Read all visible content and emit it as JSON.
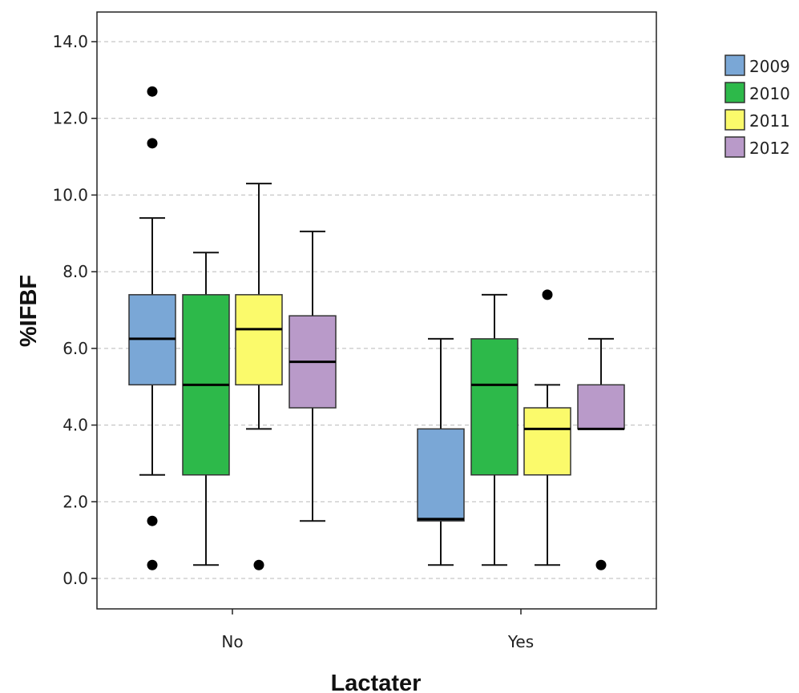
{
  "chart_data": {
    "type": "boxplot",
    "xlabel": "Lactater",
    "ylabel": "%IFBF",
    "ylim": [
      0,
      14
    ],
    "yticks": [
      0,
      2,
      4,
      6,
      8,
      10,
      12,
      14
    ],
    "ytick_labels": [
      "0.0",
      "2.0",
      "4.0",
      "6.0",
      "8.0",
      "10.0",
      "12.0",
      "14.0"
    ],
    "grid": "horizontal-dashed",
    "legend_position": "top-right",
    "categories": [
      "No",
      "Yes"
    ],
    "series": [
      {
        "name": "2009",
        "color": "#7aa7d6",
        "boxes": [
          {
            "min": 2.7,
            "q1": 5.05,
            "median": 6.25,
            "q3": 7.4,
            "max": 9.4,
            "outliers": [
              12.7,
              11.35,
              1.5,
              0.35
            ]
          },
          {
            "min": 0.35,
            "q1": 1.5,
            "median": 1.55,
            "q3": 3.9,
            "max": 6.25,
            "outliers": []
          }
        ]
      },
      {
        "name": "2010",
        "color": "#2db94a",
        "boxes": [
          {
            "min": 0.35,
            "q1": 2.7,
            "median": 5.05,
            "q3": 7.4,
            "max": 8.5,
            "outliers": []
          },
          {
            "min": 0.35,
            "q1": 2.7,
            "median": 5.05,
            "q3": 6.25,
            "max": 7.4,
            "outliers": []
          }
        ]
      },
      {
        "name": "2011",
        "color": "#fbfa6b",
        "boxes": [
          {
            "min": 3.9,
            "q1": 5.05,
            "median": 6.5,
            "q3": 7.4,
            "max": 10.3,
            "outliers": [
              0.35
            ]
          },
          {
            "min": 0.35,
            "q1": 2.7,
            "median": 3.9,
            "q3": 4.45,
            "max": 5.05,
            "outliers": [
              7.4
            ]
          }
        ]
      },
      {
        "name": "2012",
        "color": "#b99ac9",
        "boxes": [
          {
            "min": 1.5,
            "q1": 4.45,
            "median": 5.65,
            "q3": 6.85,
            "max": 9.05,
            "outliers": []
          },
          {
            "min": 3.9,
            "q1": 3.9,
            "median": 3.9,
            "q3": 5.05,
            "max": 6.25,
            "outliers": [
              0.35
            ]
          }
        ]
      }
    ]
  }
}
